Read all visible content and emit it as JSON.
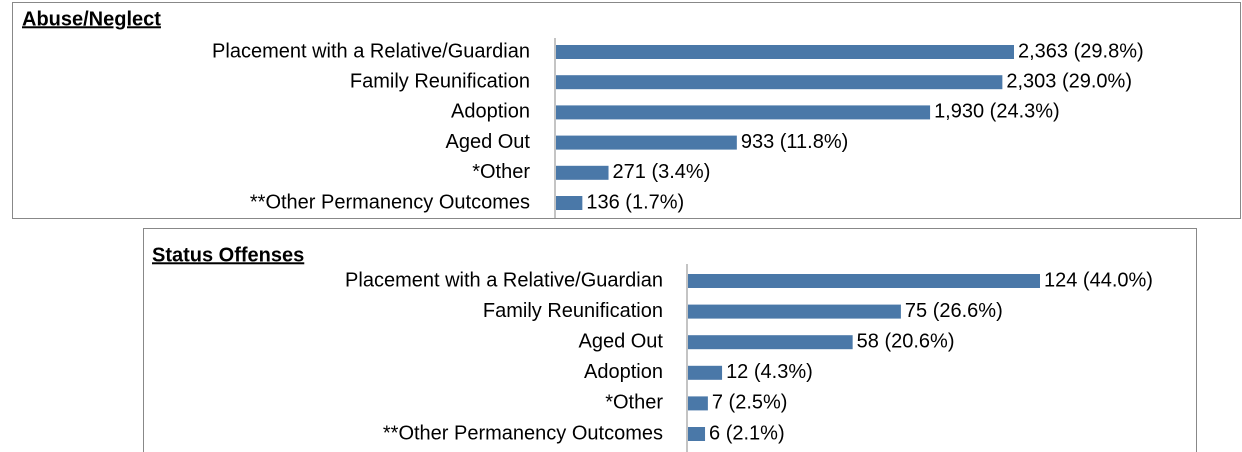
{
  "chart_data": [
    {
      "type": "bar",
      "orientation": "horizontal",
      "title": "Abuse/Neglect",
      "color": "#4a78a8",
      "categories": [
        "Placement with a Relative/Guardian",
        "Family Reunification",
        "Adoption",
        "Aged Out",
        "*Other",
        "**Other Permanency Outcomes"
      ],
      "values": [
        2363,
        2303,
        1930,
        933,
        271,
        136
      ],
      "value_labels": [
        "2,363 (29.8%)",
        "2,303 (29.0%)",
        "1,930 (24.3%)",
        "933 (11.8%)",
        "271 (3.4%)",
        "136 (1.7%)"
      ]
    },
    {
      "type": "bar",
      "orientation": "horizontal",
      "title": "Status Offenses",
      "color": "#4a78a8",
      "categories": [
        "Placement with a Relative/Guardian",
        "Family Reunification",
        "Aged Out",
        "Adoption",
        "*Other",
        "**Other Permanency Outcomes"
      ],
      "values": [
        124,
        75,
        58,
        12,
        7,
        6
      ],
      "value_labels": [
        "124 (44.0%)",
        "75 (26.6%)",
        "58 (20.6%)",
        "12 (4.3%)",
        "7 (2.5%)",
        "6 (2.1%)"
      ]
    }
  ]
}
